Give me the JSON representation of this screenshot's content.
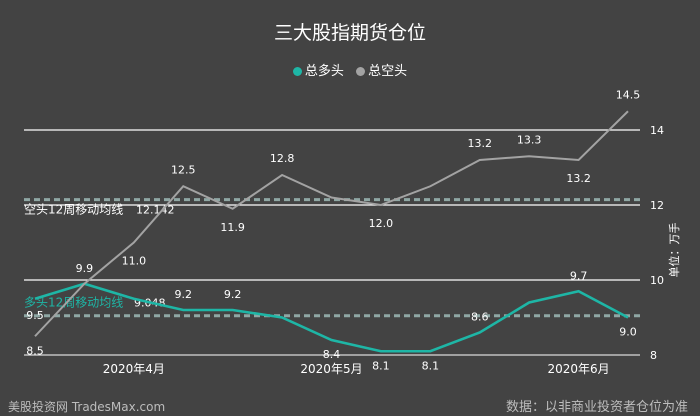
{
  "title": "三大股指期货仓位",
  "legend": [
    {
      "label": "总多头",
      "color": "#1eb6a6"
    },
    {
      "label": "总空头",
      "color": "#a3a3a3"
    }
  ],
  "unit_label": "单位：万手",
  "source_note": "数据：以非商业投资者仓位为准",
  "watermark": "美股投资网 TradesMax.com",
  "chart_data": {
    "type": "line",
    "x": [
      1,
      2,
      3,
      4,
      5,
      6,
      7,
      8,
      9,
      10,
      11,
      12,
      13
    ],
    "x_tick_labels": [
      {
        "x": 3,
        "label": "2020年4月"
      },
      {
        "x": 7,
        "label": "2020年5月"
      },
      {
        "x": 12,
        "label": "2020年6月"
      }
    ],
    "ylim": [
      8,
      15
    ],
    "y_ticks": [
      8,
      10,
      12,
      14
    ],
    "grid": true,
    "legend_position": "top-center",
    "series": [
      {
        "name": "总多头",
        "color": "#1eb6a6",
        "values": [
          9.5,
          9.9,
          9.5,
          9.2,
          9.2,
          9.0,
          8.4,
          8.1,
          8.1,
          8.6,
          9.4,
          9.7,
          9.0
        ],
        "data_labels": [
          "9.5",
          "9.9",
          "",
          "9.2",
          "9.2",
          "",
          "8.4",
          "8.1",
          "8.1",
          "8.6",
          "",
          "9.7",
          "9.0"
        ],
        "moving_average": {
          "label": "多头12周移动均线",
          "value": 9.048,
          "value_label": "9.048"
        }
      },
      {
        "name": "总空头",
        "color": "#a3a3a3",
        "values": [
          8.5,
          9.9,
          11.0,
          12.5,
          11.9,
          12.8,
          12.2,
          12.0,
          12.5,
          13.2,
          13.3,
          13.2,
          14.5
        ],
        "data_labels": [
          "8.5",
          "",
          "11.0",
          "12.5",
          "11.9",
          "12.8",
          "",
          "12.0",
          "",
          "13.2",
          "13.3",
          "13.2",
          "14.5"
        ],
        "moving_average": {
          "label": "空头12周移动均线",
          "value": 12.142,
          "value_label": "12.142"
        }
      }
    ]
  }
}
